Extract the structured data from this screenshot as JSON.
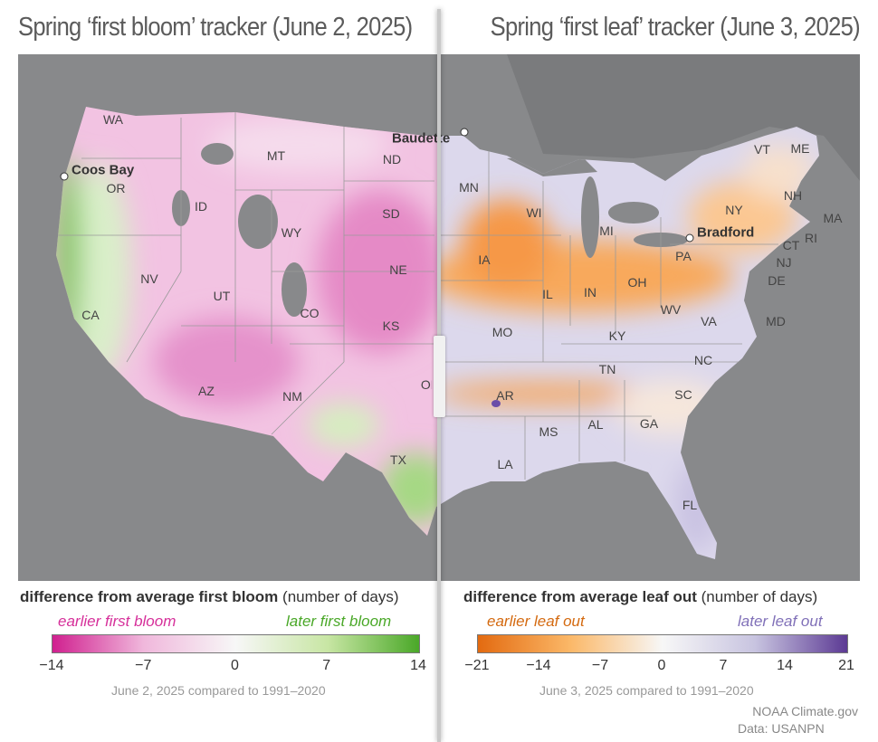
{
  "left": {
    "title": "Spring ‘first bloom’ tracker (June 2, 2025)",
    "states": [
      "WA",
      "OR",
      "CA",
      "ID",
      "NV",
      "UT",
      "AZ",
      "MT",
      "WY",
      "CO",
      "NM",
      "ND",
      "SD",
      "NE",
      "KS",
      "OK",
      "TX"
    ],
    "cities": [
      "Coos Bay"
    ],
    "legend": {
      "title_bold": "difference from average first bloom",
      "title_rest": " (number of days)",
      "low_label": "earlier first bloom",
      "high_label": "later first bloom",
      "ticks": [
        "−14",
        "−7",
        "0",
        "7",
        "14"
      ],
      "colors": [
        "#d0208f",
        "#f0b8dc",
        "#f7f7f7",
        "#c8e6a4",
        "#4aa828"
      ],
      "note": "June 2, 2025 compared to 1991–2020"
    }
  },
  "right": {
    "title": "Spring ‘first leaf’ tracker (June 3, 2025)",
    "states": [
      "MN",
      "WI",
      "MI",
      "IA",
      "IL",
      "IN",
      "OH",
      "PA",
      "NY",
      "VT",
      "ME",
      "NH",
      "MA",
      "RI",
      "CT",
      "NJ",
      "DE",
      "MD",
      "VA",
      "WV",
      "KY",
      "MO",
      "TN",
      "NC",
      "SC",
      "GA",
      "AL",
      "MS",
      "AR",
      "LA",
      "FL"
    ],
    "cities": [
      "Baudette",
      "Bradford"
    ],
    "legend": {
      "title_bold": "difference from average leaf out",
      "title_rest": " (number of days)",
      "low_label": "earlier leaf out",
      "high_label": "later leaf out",
      "ticks": [
        "−21",
        "−14",
        "−7",
        "0",
        "7",
        "14",
        "21"
      ],
      "colors": [
        "#e36a10",
        "#fbb868",
        "#f7f7f7",
        "#c8c4e0",
        "#5c3a94"
      ],
      "note": "June 3, 2025 compared to 1991–2020"
    }
  },
  "credit": "NOAA Climate.gov",
  "data_source": "Data: USANPN"
}
